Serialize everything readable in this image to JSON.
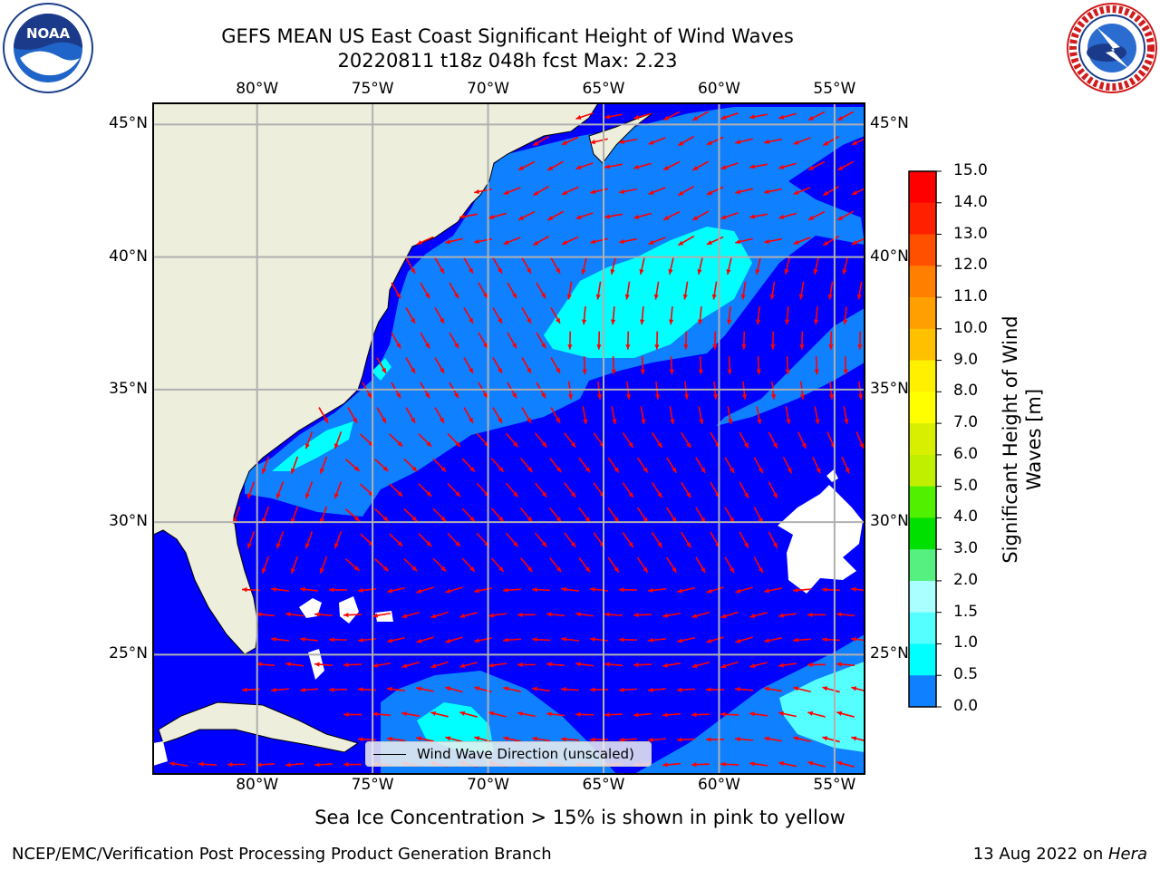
{
  "header": {
    "title_line1": "GEFS MEAN US East Coast Significant Height of Wind Waves",
    "title_line2": "20220811 t18z 048h fcst   Max: 2.23"
  },
  "logos": {
    "noaa": {
      "icon": "noaa-logo-icon",
      "text": "NOAA"
    },
    "nws": {
      "icon": "nws-logo-icon"
    }
  },
  "map": {
    "lon_ticks": [
      "80°W",
      "75°W",
      "70°W",
      "65°W",
      "60°W",
      "55°W"
    ],
    "lat_ticks": [
      "45°N",
      "40°N",
      "35°N",
      "30°N",
      "25°N"
    ],
    "lon_range": [
      -84.5,
      -53.7
    ],
    "lat_range": [
      20.5,
      45.8
    ],
    "land_color": "#eeeedd",
    "ocean_colors": {
      "0-0.5": "#0000ff",
      "0.5-1.0": "#0f80ff",
      "1.0-1.5": "#00ffff",
      "1.5-2.0": "#55ffff"
    },
    "arrow_color": "#ff0000",
    "legend_label": "Wind Wave Direction (unscaled)"
  },
  "colorbar": {
    "title": "Significant Height of Wind Waves [m]",
    "labels": [
      "15.0",
      "14.0",
      "13.0",
      "12.0",
      "11.0",
      "10.0",
      "9.0",
      "8.0",
      "7.0",
      "6.0",
      "5.0",
      "4.0",
      "3.0",
      "2.0",
      "1.5",
      "1.0",
      "0.5",
      "0.0"
    ],
    "colors": [
      "#ff0000",
      "#ff2000",
      "#ff5000",
      "#ff8000",
      "#ffa000",
      "#ffc000",
      "#fff000",
      "#ffff00",
      "#d8f000",
      "#c0f000",
      "#50f000",
      "#00e000",
      "#55f080",
      "#aaffff",
      "#55ffff",
      "#00ffff",
      "#0f80ff",
      "#0000ff"
    ]
  },
  "subtitle": "Sea Ice Concentration > 15% is shown in pink to yellow",
  "footer": {
    "left": "NCEP/EMC/Verification Post Processing Product Generation Branch",
    "right_date": "13 Aug 2022 on ",
    "right_machine": "Hera"
  }
}
